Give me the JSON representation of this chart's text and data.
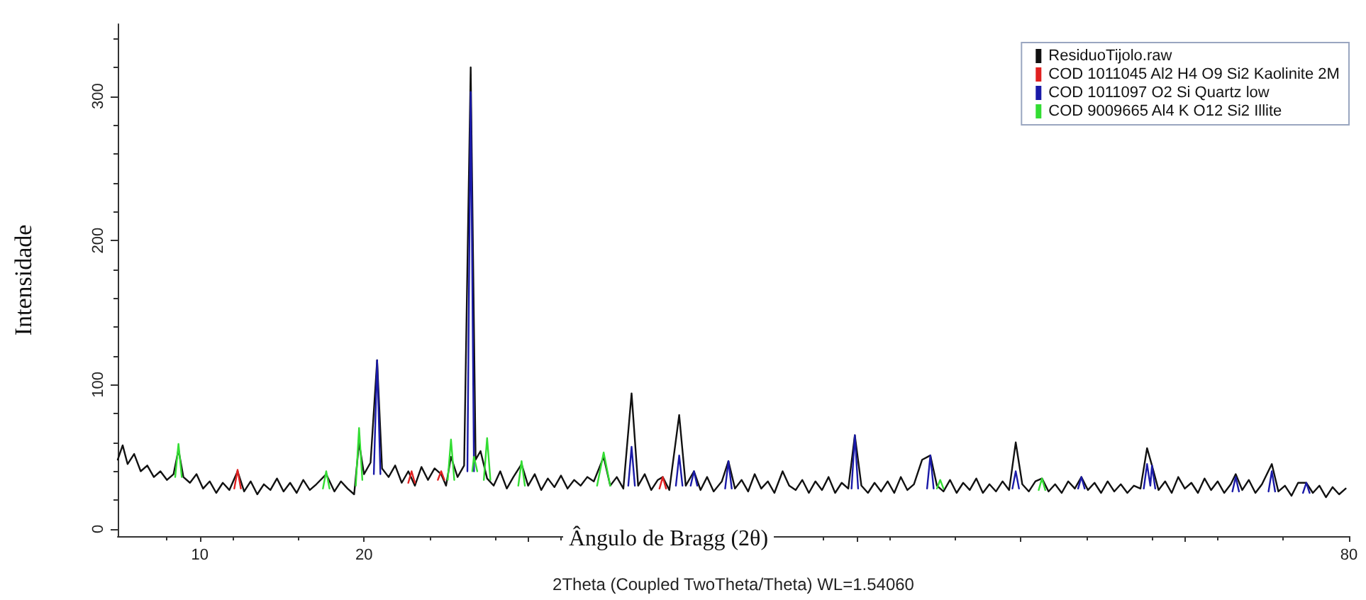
{
  "chart_data": {
    "type": "line",
    "xlabel": "2Theta (Coupled TwoTheta/Theta) WL=1.54060",
    "ylabel": "Intensidade",
    "annotations": [
      "Ângulo de Bragg (2θ)"
    ],
    "xlim": [
      5,
      80
    ],
    "xticks": [
      10,
      20,
      {
        "value": 30,
        "label": null
      },
      {
        "value": 40,
        "label": null
      },
      {
        "value": 50,
        "label": null
      },
      {
        "value": 60,
        "label": null
      },
      {
        "value": 70,
        "label": null
      },
      80
    ],
    "ylim": [
      -5,
      350
    ],
    "yticks": [
      0,
      100,
      200,
      300
    ],
    "grid": false,
    "legend": "top right",
    "marker": "none",
    "line_style": "solid",
    "series": [
      {
        "name": "ResiduoTijolo.raw",
        "color": "#111111",
        "x": [
          5.0,
          5.3,
          5.6,
          6.0,
          6.4,
          6.8,
          7.2,
          7.6,
          8.0,
          8.4,
          8.7,
          9.0,
          9.4,
          9.8,
          10.2,
          10.6,
          11.0,
          11.4,
          11.8,
          12.3,
          12.7,
          13.1,
          13.5,
          13.9,
          14.3,
          14.7,
          15.1,
          15.5,
          15.9,
          16.3,
          16.7,
          17.1,
          17.7,
          18.2,
          18.6,
          19.0,
          19.4,
          19.7,
          20.0,
          20.4,
          20.8,
          21.1,
          21.5,
          21.9,
          22.3,
          22.7,
          23.1,
          23.5,
          23.9,
          24.3,
          24.7,
          25.0,
          25.3,
          25.7,
          26.1,
          26.5,
          26.8,
          27.1,
          27.5,
          27.9,
          28.3,
          28.7,
          29.1,
          29.6,
          30.0,
          30.4,
          30.8,
          31.2,
          31.6,
          32.0,
          32.4,
          32.8,
          33.2,
          33.6,
          34.0,
          34.6,
          35.0,
          35.4,
          35.8,
          36.3,
          36.7,
          37.1,
          37.5,
          37.9,
          38.2,
          38.6,
          39.2,
          39.6,
          40.1,
          40.5,
          40.9,
          41.3,
          41.8,
          42.2,
          42.6,
          43.0,
          43.4,
          43.8,
          44.2,
          44.6,
          45.0,
          45.5,
          45.9,
          46.3,
          46.7,
          47.1,
          47.5,
          47.9,
          48.3,
          48.7,
          49.1,
          49.5,
          49.9,
          50.3,
          50.7,
          51.1,
          51.5,
          51.9,
          52.3,
          52.7,
          53.1,
          53.5,
          54.0,
          54.5,
          54.9,
          55.3,
          55.7,
          56.1,
          56.5,
          56.9,
          57.3,
          57.7,
          58.1,
          58.5,
          58.9,
          59.3,
          59.7,
          60.1,
          60.5,
          60.9,
          61.3,
          61.7,
          62.1,
          62.5,
          62.9,
          63.3,
          63.7,
          64.1,
          64.5,
          64.9,
          65.3,
          65.7,
          66.1,
          66.5,
          66.9,
          67.3,
          67.7,
          68.0,
          68.4,
          68.8,
          69.2,
          69.6,
          70.0,
          70.4,
          70.8,
          71.2,
          71.6,
          72.0,
          72.4,
          72.8,
          73.1,
          73.5,
          73.9,
          74.3,
          74.7,
          75.3,
          75.7,
          76.1,
          76.5,
          76.9,
          77.4,
          77.8,
          78.2,
          78.6,
          79.0,
          79.4,
          79.8
        ],
        "values": [
          48,
          58,
          45,
          52,
          40,
          44,
          36,
          40,
          34,
          38,
          55,
          36,
          32,
          38,
          28,
          33,
          25,
          32,
          27,
          40,
          26,
          33,
          24,
          31,
          27,
          35,
          26,
          32,
          25,
          34,
          27,
          31,
          38,
          26,
          33,
          28,
          24,
          60,
          38,
          46,
          117,
          42,
          36,
          44,
          32,
          40,
          30,
          43,
          34,
          42,
          38,
          30,
          50,
          36,
          44,
          320,
          48,
          54,
          35,
          30,
          40,
          28,
          36,
          45,
          30,
          38,
          27,
          35,
          29,
          37,
          28,
          34,
          30,
          36,
          33,
          50,
          30,
          36,
          28,
          94,
          30,
          38,
          27,
          34,
          36,
          27,
          79,
          30,
          40,
          27,
          36,
          26,
          33,
          47,
          28,
          34,
          26,
          38,
          28,
          33,
          25,
          40,
          30,
          27,
          34,
          25,
          33,
          27,
          36,
          25,
          32,
          28,
          65,
          30,
          25,
          32,
          26,
          33,
          25,
          36,
          27,
          31,
          48,
          51,
          30,
          26,
          34,
          25,
          32,
          27,
          35,
          25,
          31,
          26,
          33,
          27,
          60,
          31,
          26,
          33,
          35,
          26,
          31,
          25,
          33,
          28,
          36,
          27,
          32,
          25,
          33,
          26,
          31,
          25,
          30,
          28,
          56,
          44,
          27,
          33,
          25,
          36,
          28,
          32,
          25,
          35,
          27,
          33,
          25,
          31,
          38,
          27,
          34,
          25,
          31,
          45,
          26,
          30,
          23,
          32,
          32,
          25,
          30,
          22,
          29,
          24,
          28
        ]
      },
      {
        "name": "COD 1011045 Al2 H4 O9 Si2 Kaolinite 2M",
        "color": "#e02020",
        "x": [
          12.1,
          12.3,
          12.5,
          12.6,
          22.7,
          22.9,
          23.1,
          23.2,
          24.5,
          24.7,
          24.9,
          25.0,
          38.0,
          38.2,
          38.4
        ],
        "values": [
          28,
          41,
          28,
          null,
          32,
          40,
          32,
          null,
          34,
          40,
          34,
          null,
          28,
          36,
          28
        ]
      },
      {
        "name": "COD 1011097 O2 Si Quartz low",
        "color": "#1a1aa8",
        "x": [
          20.6,
          20.8,
          21.0,
          21.1,
          26.3,
          26.5,
          26.7,
          26.8,
          36.1,
          36.3,
          36.5,
          36.6,
          39.0,
          39.2,
          39.4,
          39.5,
          39.9,
          40.1,
          40.3,
          40.4,
          42.0,
          42.2,
          42.4,
          42.5,
          49.7,
          49.9,
          50.1,
          50.2,
          54.3,
          54.5,
          54.7,
          54.8,
          59.5,
          59.7,
          59.9,
          60.0,
          63.5,
          63.7,
          63.9,
          64.0,
          67.5,
          67.7,
          67.9,
          68.0,
          68.2,
          68.3,
          72.9,
          73.1,
          73.3,
          73.4,
          75.1,
          75.3,
          75.5,
          75.6,
          77.2,
          77.4,
          77.6
        ],
        "values": [
          38,
          117,
          38,
          null,
          40,
          303,
          40,
          null,
          30,
          57,
          30,
          null,
          30,
          51,
          30,
          null,
          30,
          40,
          30,
          null,
          28,
          47,
          28,
          null,
          28,
          65,
          28,
          null,
          28,
          51,
          28,
          null,
          28,
          40,
          28,
          null,
          28,
          36,
          28,
          null,
          28,
          45,
          30,
          44,
          28,
          null,
          26,
          36,
          26,
          null,
          26,
          40,
          26,
          null,
          25,
          32,
          25
        ]
      },
      {
        "name": "COD 9009665 Al4 K O12 Si2 Illite",
        "color": "#33dd33",
        "x": [
          8.5,
          8.7,
          8.9,
          9.0,
          17.5,
          17.7,
          17.9,
          18.0,
          19.5,
          19.7,
          19.9,
          20.0,
          25.1,
          25.3,
          25.5,
          25.6,
          26.6,
          26.7,
          26.9,
          27.0,
          27.3,
          27.5,
          27.7,
          27.8,
          29.4,
          29.6,
          29.8,
          29.9,
          34.2,
          34.6,
          35.0,
          35.1,
          54.9,
          55.1,
          55.3,
          55.4,
          61.1,
          61.3,
          61.5
        ],
        "values": [
          36,
          59,
          36,
          null,
          28,
          40,
          28,
          null,
          30,
          70,
          34,
          null,
          34,
          62,
          34,
          null,
          40,
          50,
          40,
          null,
          34,
          63,
          34,
          null,
          30,
          47,
          30,
          null,
          30,
          53,
          30,
          null,
          28,
          34,
          28,
          null,
          27,
          35,
          27
        ]
      }
    ]
  }
}
